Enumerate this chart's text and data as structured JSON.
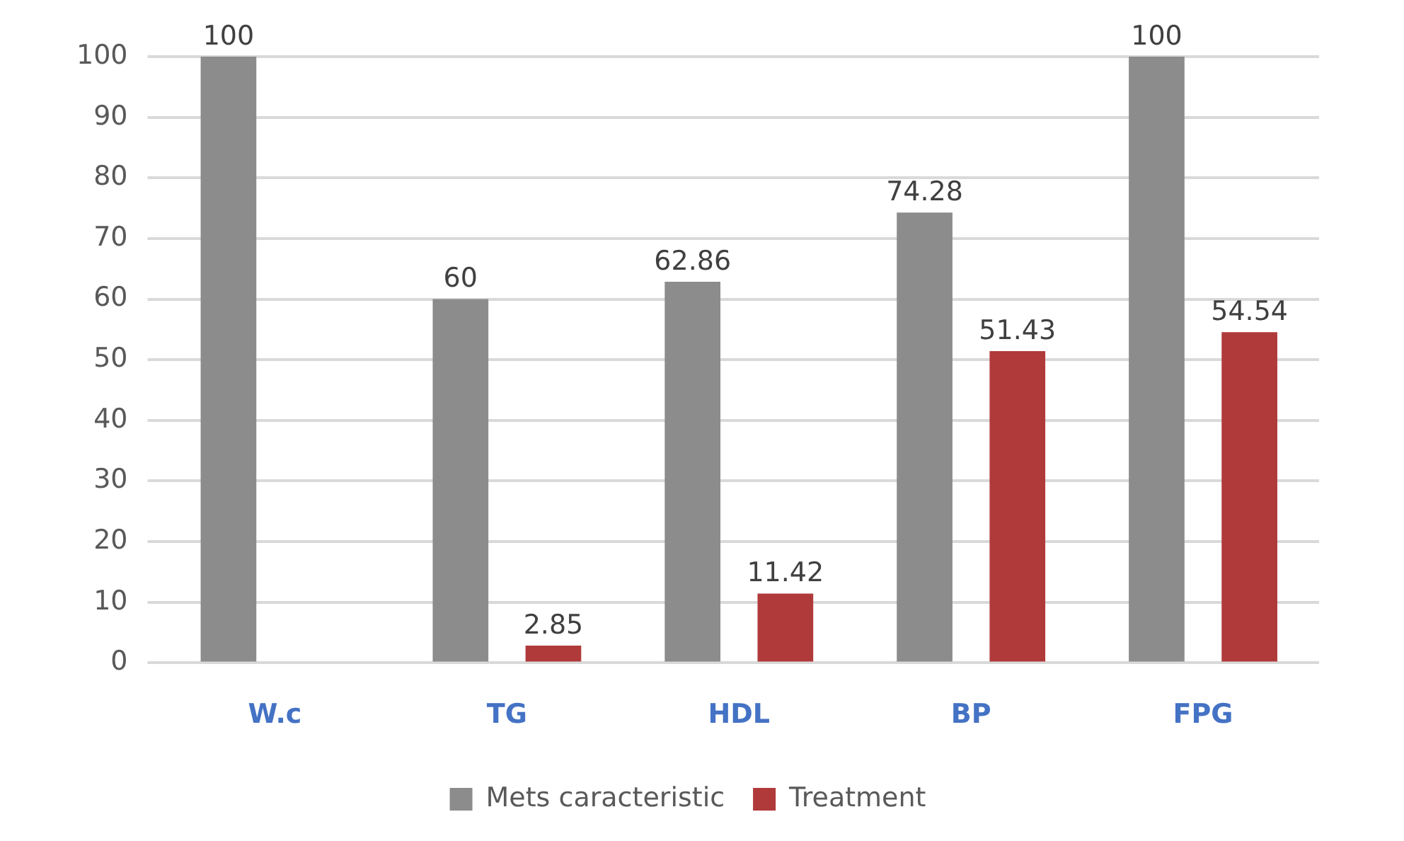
{
  "chart_data": {
    "type": "bar",
    "categories": [
      "W.c",
      "TG",
      "HDL",
      "BP",
      "FPG"
    ],
    "series": [
      {
        "name": "Mets caracteristic",
        "color": "#8c8c8c",
        "values": [
          100,
          60,
          62.86,
          74.28,
          100
        ]
      },
      {
        "name": "Treatment",
        "color": "#b03a3a",
        "values": [
          null,
          2.85,
          11.42,
          51.43,
          54.54
        ]
      }
    ],
    "ylim": [
      0,
      100
    ],
    "yticks": [
      0,
      10,
      20,
      30,
      40,
      50,
      60,
      70,
      80,
      90,
      100
    ],
    "grid": "y",
    "legend": "bottom",
    "data_labels": true
  }
}
